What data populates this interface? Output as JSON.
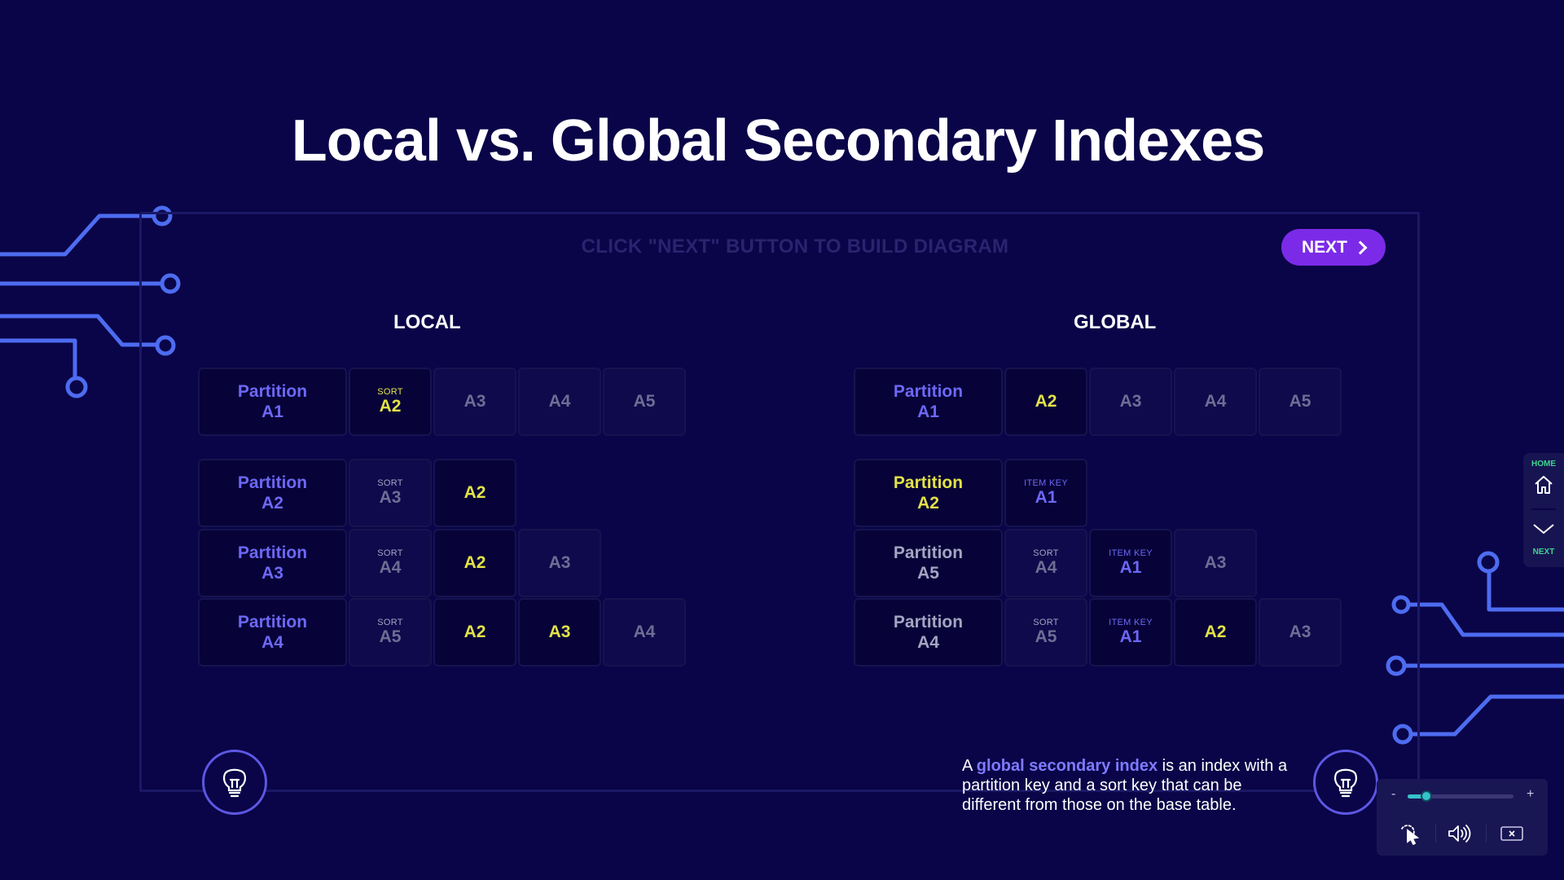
{
  "title": "Local vs. Global Secondary Indexes",
  "instruction": "CLICK \"NEXT\" BUTTON TO BUILD DIAGRAM",
  "next_button": {
    "label": "NEXT"
  },
  "local": {
    "label": "LOCAL",
    "rows": [
      {
        "partition": [
          "Partition",
          "A1"
        ],
        "partition_color": "blue",
        "cells": [
          {
            "sub": "SORT",
            "main": "A2",
            "color": "yellow",
            "sub_color": "yellow",
            "dark": true
          },
          {
            "main": "A3",
            "color": "gray"
          },
          {
            "main": "A4",
            "color": "gray"
          },
          {
            "main": "A5",
            "color": "gray"
          }
        ]
      },
      {
        "partition": [
          "Partition",
          "A2"
        ],
        "partition_color": "blue",
        "cells": [
          {
            "sub": "SORT",
            "main": "A3",
            "color": "gray",
            "sub_color": "gray"
          },
          {
            "main": "A2",
            "color": "yellow",
            "dark": true
          }
        ]
      },
      {
        "partition": [
          "Partition",
          "A3"
        ],
        "partition_color": "blue",
        "cells": [
          {
            "sub": "SORT",
            "main": "A4",
            "color": "gray",
            "sub_color": "gray"
          },
          {
            "main": "A2",
            "color": "yellow",
            "dark": true
          },
          {
            "main": "A3",
            "color": "gray"
          }
        ]
      },
      {
        "partition": [
          "Partition",
          "A4"
        ],
        "partition_color": "blue",
        "cells": [
          {
            "sub": "SORT",
            "main": "A5",
            "color": "gray",
            "sub_color": "gray"
          },
          {
            "main": "A2",
            "color": "yellow",
            "dark": true
          },
          {
            "main": "A3",
            "color": "yellow",
            "dark": true
          },
          {
            "main": "A4",
            "color": "gray"
          }
        ]
      }
    ]
  },
  "global": {
    "label": "GLOBAL",
    "rows": [
      {
        "partition": [
          "Partition",
          "A1"
        ],
        "partition_color": "blue",
        "cells": [
          {
            "main": "A2",
            "color": "yellow",
            "dark": true
          },
          {
            "main": "A3",
            "color": "gray"
          },
          {
            "main": "A4",
            "color": "gray"
          },
          {
            "main": "A5",
            "color": "gray"
          }
        ]
      },
      {
        "partition": [
          "Partition",
          "A2"
        ],
        "partition_color": "yellow",
        "cells": [
          {
            "sub": "ITEM KEY",
            "main": "A1",
            "color": "blue",
            "sub_color": "blue",
            "dark": true
          }
        ]
      },
      {
        "partition": [
          "Partition",
          "A5"
        ],
        "partition_color": "gray",
        "cells": [
          {
            "sub": "SORT",
            "main": "A4",
            "color": "gray",
            "sub_color": "gray"
          },
          {
            "sub": "ITEM KEY",
            "main": "A1",
            "color": "blue",
            "sub_color": "blue",
            "dark": true
          },
          {
            "main": "A3",
            "color": "gray"
          }
        ]
      },
      {
        "partition": [
          "Partition",
          "A4"
        ],
        "partition_color": "gray",
        "cells": [
          {
            "sub": "SORT",
            "main": "A5",
            "color": "gray",
            "sub_color": "gray"
          },
          {
            "sub": "ITEM KEY",
            "main": "A1",
            "color": "blue",
            "sub_color": "blue",
            "dark": true
          },
          {
            "main": "A2",
            "color": "yellow",
            "dark": true
          },
          {
            "main": "A3",
            "color": "gray"
          }
        ]
      }
    ]
  },
  "explanation": {
    "prefix": "A ",
    "highlight": "global secondary index",
    "suffix": " is an index with a partition key and a sort key that can be different from those on the base table."
  },
  "side_nav": {
    "home_label": "HOME",
    "next_label": "NEXT"
  },
  "media": {
    "minus": "-",
    "plus": "+",
    "volume_level": 0.18
  },
  "icons": {
    "hint_left": "lightbulb-icon",
    "hint_right": "lightbulb-icon",
    "home": "home-icon",
    "next": "chevron-down-icon",
    "cursor": "cursor-click-icon",
    "volume": "speaker-icon",
    "close": "close-captions-icon"
  },
  "colors": {
    "background": "#0a0548",
    "accent_purple": "#7b2be8",
    "blue": "#6d68f5",
    "yellow": "#e3e247",
    "gray": "#6e6d94",
    "circuit": "#4d6cf0",
    "nav_green": "#3fd58e"
  }
}
